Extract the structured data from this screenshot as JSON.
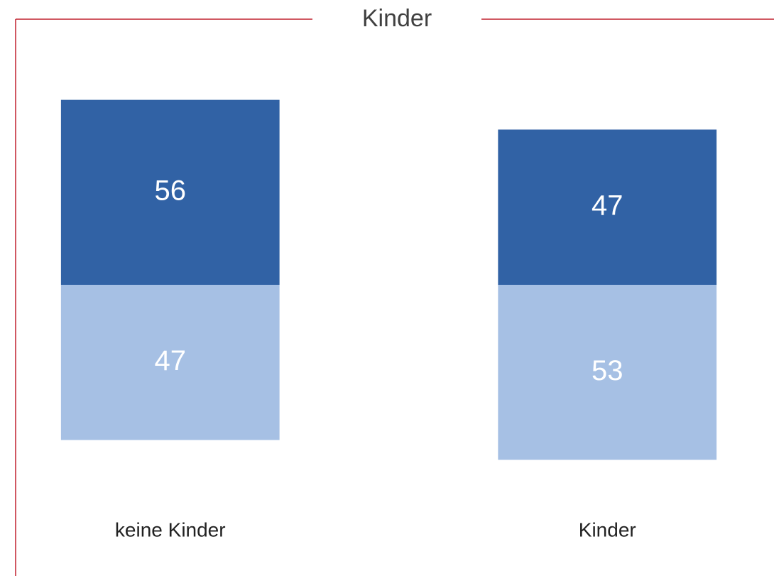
{
  "chart_data": {
    "type": "bar",
    "title": "Kinder",
    "diverging": true,
    "categories": [
      "keine Kinder",
      "Kinder"
    ],
    "series": [
      {
        "color": "#3162a5",
        "values": [
          56,
          47
        ]
      },
      {
        "color": "#a6c0e4",
        "values": [
          47,
          53
        ]
      }
    ],
    "ylim": [
      -60,
      60
    ],
    "grid": false
  }
}
